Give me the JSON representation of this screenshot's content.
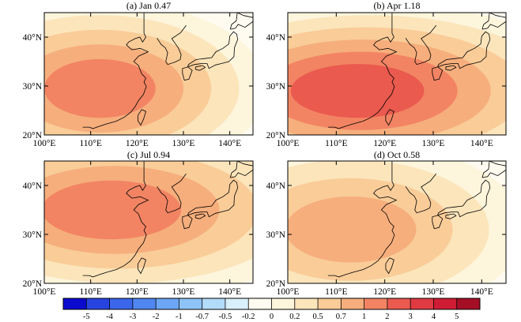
{
  "figure": {
    "panels": [
      {
        "title": "(a) Jan 0.47",
        "field": {
          "levels": [
            0.2,
            0.5,
            0.7,
            1,
            2
          ],
          "centers": [
            [
              112,
              29.5
            ]
          ]
        }
      },
      {
        "title": "(b) Apr 1.18",
        "field": {
          "levels": [
            0.2,
            0.5,
            0.7,
            1,
            2,
            3
          ],
          "centers": [
            [
              113,
              29
            ]
          ]
        }
      },
      {
        "title": "(c) Jul 0.94",
        "field": {
          "levels": [
            0.2,
            0.5,
            0.7,
            1,
            2
          ],
          "centers": [
            [
              113,
              35
            ]
          ]
        }
      },
      {
        "title": "(d) Oct 0.58",
        "field": {
          "levels": [
            0.2,
            0.5,
            0.7,
            1
          ],
          "centers": [
            [
              113,
              31
            ]
          ]
        }
      }
    ],
    "x_ticks": [
      "100°E",
      "110°E",
      "120°E",
      "130°E",
      "140°E"
    ],
    "y_ticks": [
      "20°N",
      "30°N",
      "40°N"
    ],
    "x_tick_values": [
      100,
      110,
      120,
      130,
      140
    ],
    "y_tick_values": [
      20,
      30,
      40
    ],
    "lon_range": [
      100,
      145
    ],
    "lat_range": [
      20,
      45
    ],
    "colorbar": {
      "labels": [
        "-5",
        "-4",
        "-3",
        "-2",
        "-1",
        "-0.7",
        "-0.5",
        "-0.2",
        "0",
        "0.2",
        "0.5",
        "0.7",
        "1",
        "2",
        "3",
        "4",
        "5"
      ],
      "colors": [
        "#0b0bcf",
        "#2744e0",
        "#3b66ea",
        "#4f86ef",
        "#6da6f4",
        "#8ec3f7",
        "#b2dcf9",
        "#d9effb",
        "#fffbf0",
        "#fdf5dc",
        "#fce5bb",
        "#f9cc98",
        "#f6ae7c",
        "#f28463",
        "#ea5a4e",
        "#e03a43",
        "#cf1c34",
        "#a50f26"
      ]
    },
    "shading_colors": {
      "0.2": "#fdf5dc",
      "0.5": "#fce5bb",
      "0.7": "#f9cc98",
      "1": "#f6ae7c",
      "2": "#f28463",
      "3": "#ea5a4e"
    }
  }
}
